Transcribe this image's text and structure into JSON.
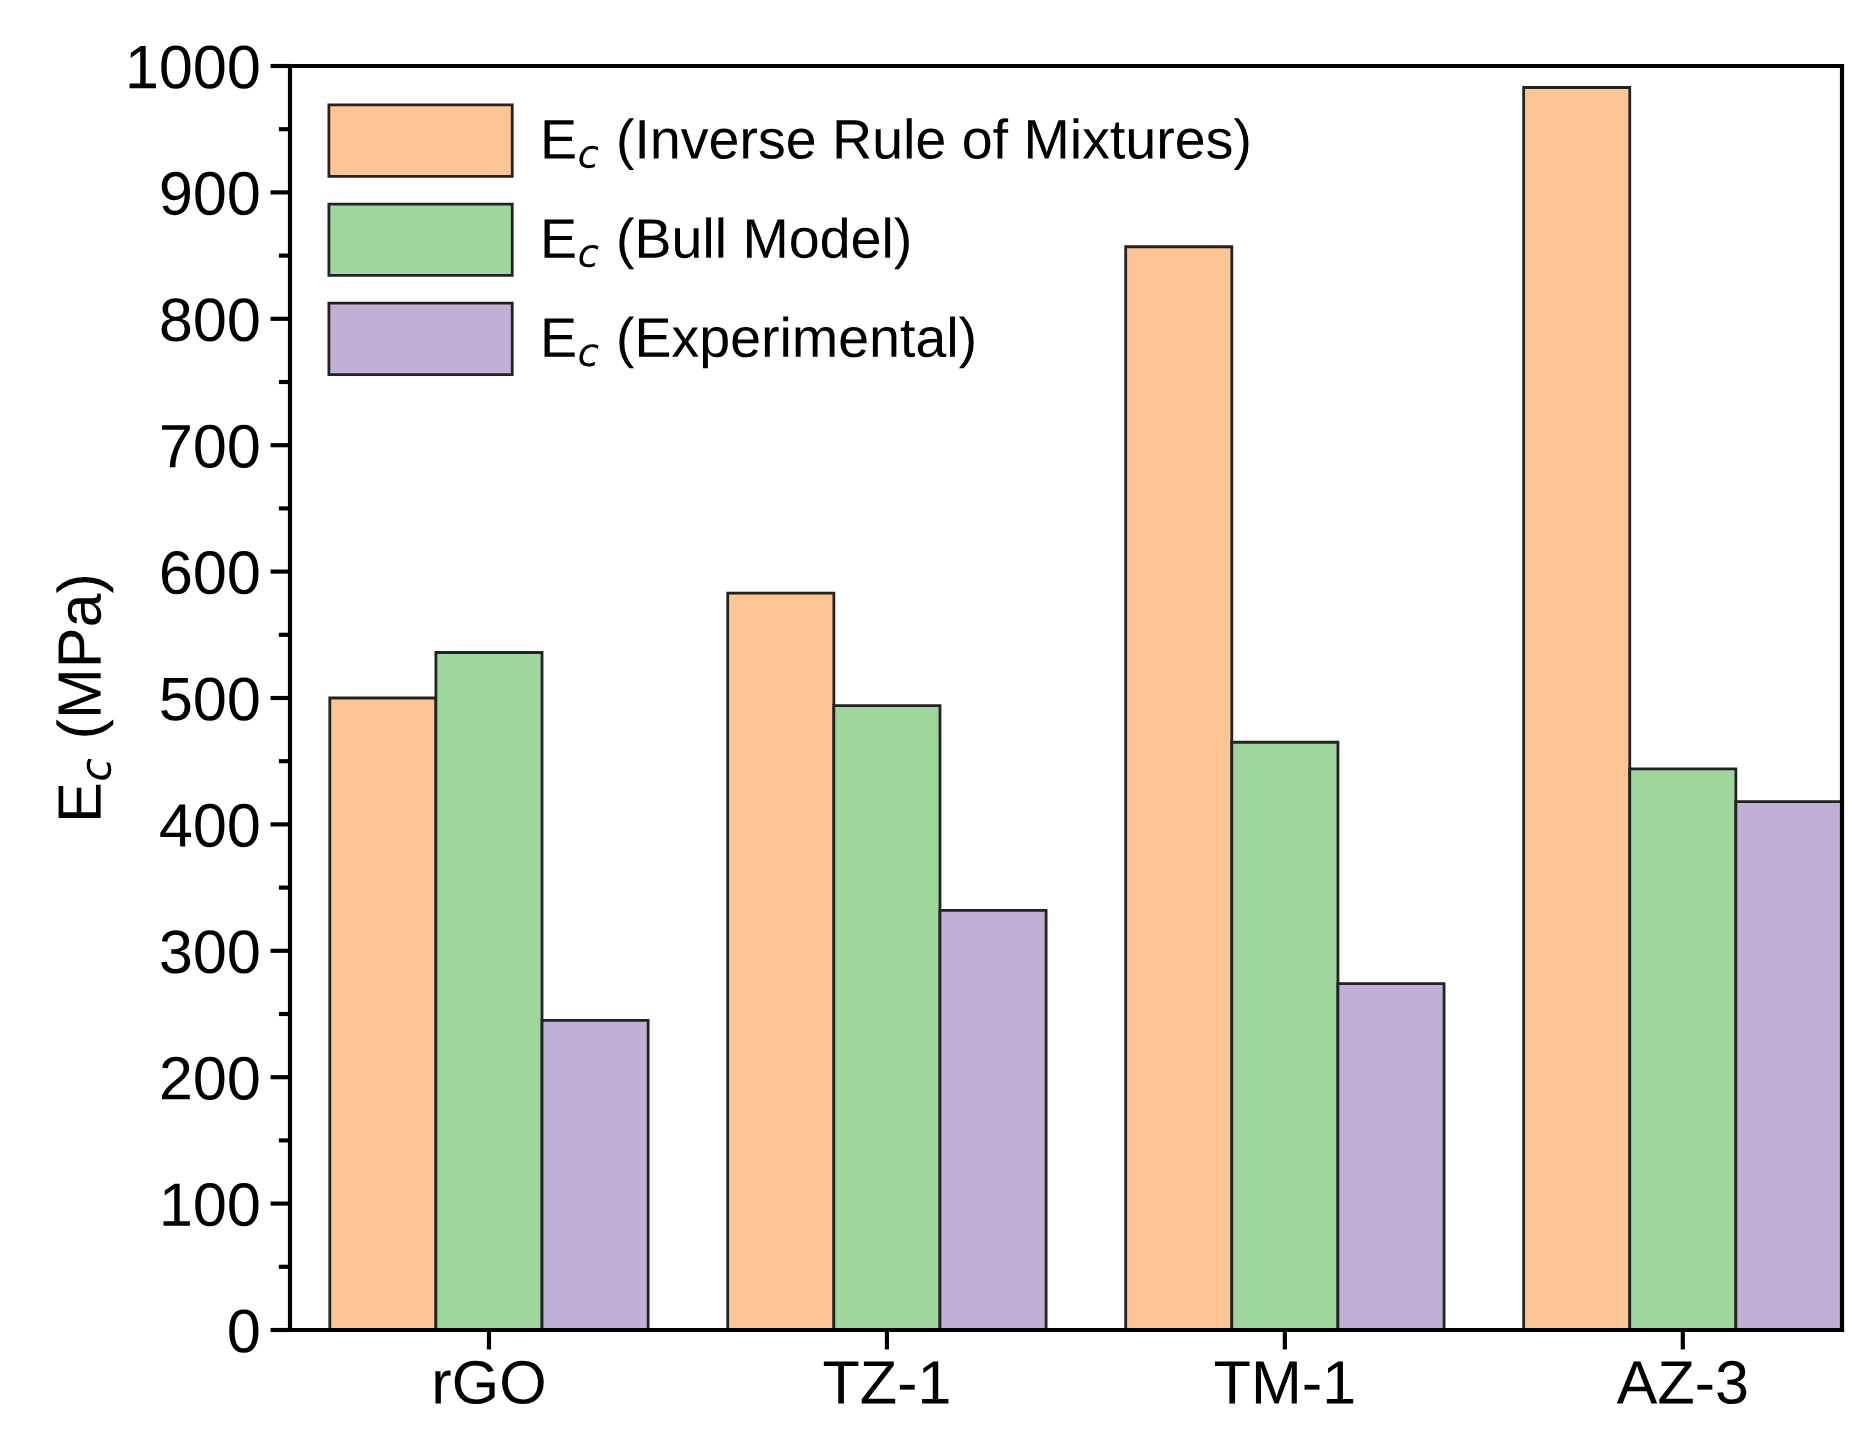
{
  "chart_data": {
    "type": "bar",
    "ylabel": "E$_{c}$ (MPa)",
    "categories": [
      "rGO",
      "TZ-1",
      "TM-1",
      "AZ-3"
    ],
    "series": [
      {
        "name": "E$_{c}$ (Inverse Rule of Mixtures)",
        "color": "#fdc593",
        "values": [
          500,
          583,
          857,
          983
        ]
      },
      {
        "name": "E$_{c}$ (Bull Model)",
        "color": "#9ed69c",
        "values": [
          536,
          494,
          465,
          444
        ]
      },
      {
        "name": "E$_{c}$ (Experimental)",
        "color": "#c1b0d6",
        "values": [
          245,
          332,
          274,
          418
        ]
      }
    ],
    "ylim": [
      0,
      1000
    ],
    "yticks": [
      0,
      100,
      200,
      300,
      400,
      500,
      600,
      700,
      800,
      900,
      1000
    ],
    "grid": false,
    "legend": "top left"
  }
}
